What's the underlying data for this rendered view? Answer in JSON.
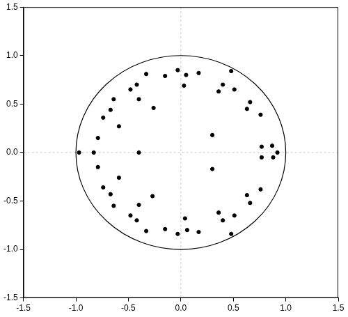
{
  "chart_data": {
    "type": "scatter",
    "x": [
      -0.97,
      -0.83,
      -0.4,
      -0.79,
      -0.74,
      -0.67,
      -0.64,
      -0.59,
      -0.48,
      -0.42,
      -0.4,
      -0.33,
      -0.26,
      -0.15,
      -0.03,
      0.03,
      0.05,
      0.17,
      0.3,
      0.36,
      0.4,
      0.48,
      0.51,
      0.63,
      0.66,
      0.76,
      0.77,
      0.87,
      0.92,
      0.77,
      0.88,
      -0.79,
      -0.74,
      -0.67,
      -0.64,
      -0.59,
      -0.48,
      -0.42,
      -0.4,
      -0.33,
      -0.27,
      -0.15,
      -0.03,
      0.04,
      0.06,
      0.17,
      0.3,
      0.36,
      0.4,
      0.48,
      0.51,
      0.63,
      0.66,
      0.76
    ],
    "values": [
      0.0,
      0.0,
      0.0,
      0.15,
      0.36,
      0.44,
      0.55,
      0.27,
      0.65,
      0.7,
      0.55,
      0.81,
      0.46,
      0.79,
      0.85,
      0.69,
      0.8,
      0.82,
      0.18,
      0.63,
      0.7,
      0.84,
      0.65,
      0.45,
      0.52,
      0.39,
      0.06,
      0.07,
      0.0,
      -0.05,
      -0.05,
      -0.15,
      -0.36,
      -0.43,
      -0.55,
      -0.26,
      -0.65,
      -0.7,
      -0.54,
      -0.81,
      -0.45,
      -0.79,
      -0.84,
      -0.68,
      -0.8,
      -0.82,
      -0.17,
      -0.62,
      -0.7,
      -0.84,
      -0.65,
      -0.44,
      -0.52,
      -0.38
    ],
    "color": "#000000",
    "marker": "circle",
    "circle": {
      "x": 0,
      "y": 0,
      "radius": 1
    },
    "xlim": [
      -1.5,
      1.5
    ],
    "xticks": [
      -1.5,
      {
        "value": -1,
        "label": "-1.0"
      },
      -0.5,
      {
        "value": 0,
        "label": "0.0"
      },
      0.5,
      {
        "value": 1,
        "label": "1.0"
      },
      1.5
    ],
    "ylim": [
      -1.5,
      1.5
    ],
    "yticks": [
      -1.5,
      {
        "value": -1,
        "label": "-1.0"
      },
      -0.5,
      {
        "value": 0,
        "label": "0.0"
      },
      0.5,
      {
        "value": 1,
        "label": "1.0"
      },
      1.5
    ],
    "grid": false
  }
}
